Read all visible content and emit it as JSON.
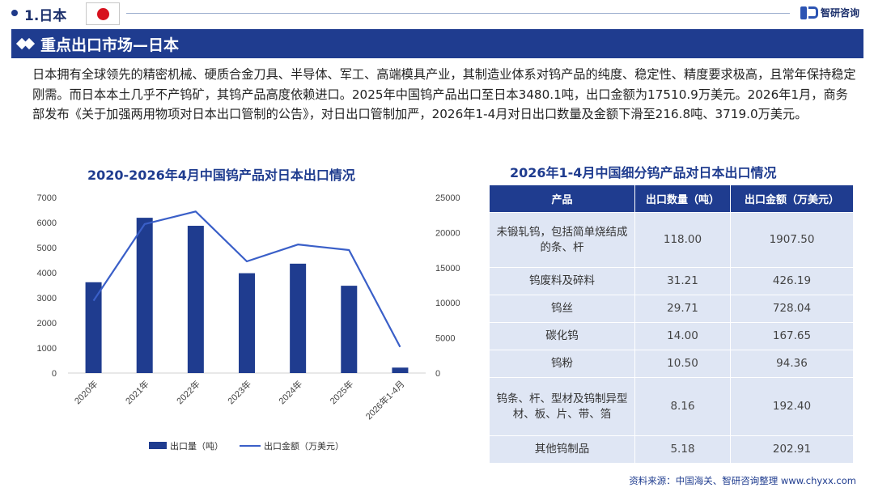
{
  "header": {
    "section_label": "1.日本",
    "brand": "智研咨询"
  },
  "title_bar": {
    "title": "重点出口市场—日本"
  },
  "body": {
    "paragraph": "日本拥有全球领先的精密机械、硬质合金刀具、半导体、军工、高端模具产业，其制造业体系对钨产品的纯度、稳定性、精度要求极高，且常年保持稳定刚需。而日本本土几乎不产钨矿，其钨产品高度依赖进口。2025年中国钨产品出口至日本3480.1吨，出口金额为17510.9万美元。2026年1月，商务部发布《关于加强两用物项对日本出口管制的公告》，对日出口管制加严，2026年1-4月对日出口数量及金额下滑至216.8吨、3719.0万美元。"
  },
  "chart_data": {
    "type": "bar",
    "title": "2020-2026年4月中国钨产品对日本出口情况",
    "categories": [
      "2020年",
      "2021年",
      "2022年",
      "2023年",
      "2024年",
      "2025年",
      "2026年1-4月"
    ],
    "series": [
      {
        "name": "出口量（吨）",
        "type": "bar",
        "axis": "left",
        "values": [
          3620,
          6190,
          5870,
          3980,
          4360,
          3480.1,
          216.8
        ],
        "color": "#1f3c8f"
      },
      {
        "name": "出口金额（万美元）",
        "type": "line",
        "axis": "right",
        "values": [
          10300,
          21200,
          23000,
          15900,
          18300,
          17510.9,
          3719.0
        ],
        "color": "#3a5fc8"
      }
    ],
    "y_left": {
      "min": 0,
      "max": 7000,
      "ticks": [
        0,
        1000,
        2000,
        3000,
        4000,
        5000,
        6000,
        7000
      ]
    },
    "y_right": {
      "min": 0,
      "max": 25000,
      "ticks": [
        0,
        5000,
        10000,
        15000,
        20000,
        25000
      ]
    },
    "legend_position": "bottom",
    "grid": false
  },
  "table": {
    "title": "2026年1-4月中国细分钨产品对日本出口情况",
    "headers": [
      "产品",
      "出口数量（吨）",
      "出口金额（万美元）"
    ],
    "rows": [
      [
        "未锻轧钨，包括简单烧结成的条、杆",
        "118.00",
        "1907.50"
      ],
      [
        "钨废料及碎料",
        "31.21",
        "426.19"
      ],
      [
        "钨丝",
        "29.71",
        "728.04"
      ],
      [
        "碳化钨",
        "14.00",
        "167.65"
      ],
      [
        "钨粉",
        "10.50",
        "94.36"
      ],
      [
        "钨条、杆、型材及钨制异型材、板、片、带、箔",
        "8.16",
        "192.40"
      ],
      [
        "其他钨制品",
        "5.18",
        "202.91"
      ]
    ]
  },
  "footer": {
    "source": "资料来源：中国海关、智研咨询整理 www.chyxx.com"
  },
  "colors": {
    "primary": "#1f3c8f",
    "flag_red": "#d7111e",
    "table_cell": "#dfe6f4"
  }
}
